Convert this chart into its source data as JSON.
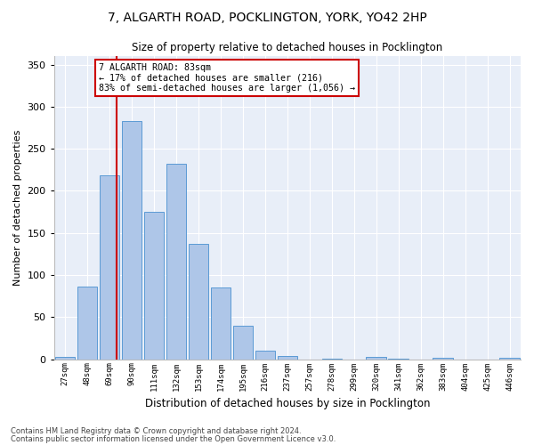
{
  "title": "7, ALGARTH ROAD, POCKLINGTON, YORK, YO42 2HP",
  "subtitle": "Size of property relative to detached houses in Pocklington",
  "xlabel": "Distribution of detached houses by size in Pocklington",
  "ylabel": "Number of detached properties",
  "bar_values": [
    3,
    86,
    218,
    283,
    175,
    232,
    137,
    85,
    40,
    10,
    4,
    0,
    1,
    0,
    3,
    1,
    0,
    2,
    0,
    0,
    2
  ],
  "bar_color": "#aec6e8",
  "bar_edge_color": "#5b9bd5",
  "background_color": "#e8eef8",
  "grid_color": "#ffffff",
  "vline_color": "#cc0000",
  "annotation_text": "7 ALGARTH ROAD: 83sqm\n← 17% of detached houses are smaller (216)\n83% of semi-detached houses are larger (1,056) →",
  "annotation_box_color": "#cc0000",
  "ylim": [
    0,
    360
  ],
  "yticks": [
    0,
    50,
    100,
    150,
    200,
    250,
    300,
    350
  ],
  "all_labels": [
    "27sqm",
    "48sqm",
    "69sqm",
    "90sqm",
    "111sqm",
    "132sqm",
    "153sqm",
    "174sqm",
    "195sqm",
    "216sqm",
    "237sqm",
    "257sqm",
    "278sqm",
    "299sqm",
    "320sqm",
    "341sqm",
    "362sqm",
    "383sqm",
    "404sqm",
    "425sqm",
    "446sqm"
  ],
  "footer1": "Contains HM Land Registry data © Crown copyright and database right 2024.",
  "footer2": "Contains public sector information licensed under the Open Government Licence v3.0."
}
